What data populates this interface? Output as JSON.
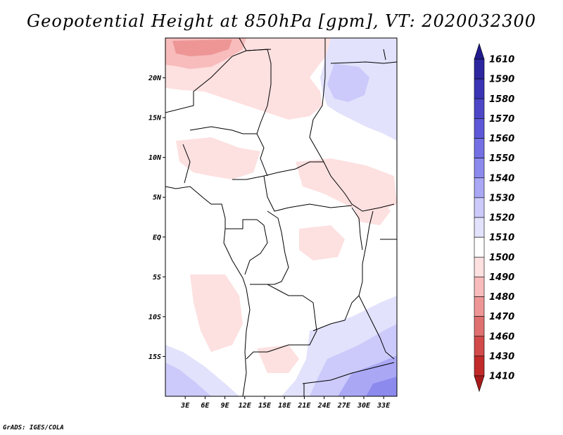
{
  "title": "Geopotential Height at 850hPa [gpm], VT: 2020032300",
  "credit": "GrADS: IGES/COLA",
  "axes": {
    "lat_labels": [
      "20N",
      "15N",
      "10N",
      "5N",
      "EQ",
      "5S",
      "10S",
      "15S"
    ],
    "lat_values": [
      20,
      15,
      10,
      5,
      0,
      -5,
      -10,
      -15
    ],
    "lon_labels": [
      "3E",
      "6E",
      "9E",
      "12E",
      "15E",
      "18E",
      "21E",
      "24E",
      "27E",
      "30E",
      "33E"
    ],
    "lon_values": [
      3,
      6,
      9,
      12,
      15,
      18,
      21,
      24,
      27,
      30,
      33
    ],
    "lon_range": [
      0,
      35
    ],
    "lat_range": [
      -20,
      25
    ]
  },
  "colorbar": {
    "labels": [
      "1610",
      "1590",
      "1580",
      "1570",
      "1560",
      "1550",
      "1540",
      "1530",
      "1520",
      "1510",
      "1500",
      "1490",
      "1480",
      "1470",
      "1460",
      "1430",
      "1410"
    ],
    "colors": [
      "#201a8c",
      "#2c26a0",
      "#3a34b4",
      "#4d47c8",
      "#5e58d8",
      "#7470e4",
      "#8d8aee",
      "#aaa8f5",
      "#cbcafa",
      "#e2e2fc",
      "#ffffff",
      "#fde0e0",
      "#f8bcbc",
      "#ee9696",
      "#e07070",
      "#d24a4a",
      "#c22a2a",
      "#a81a1a"
    ]
  }
}
